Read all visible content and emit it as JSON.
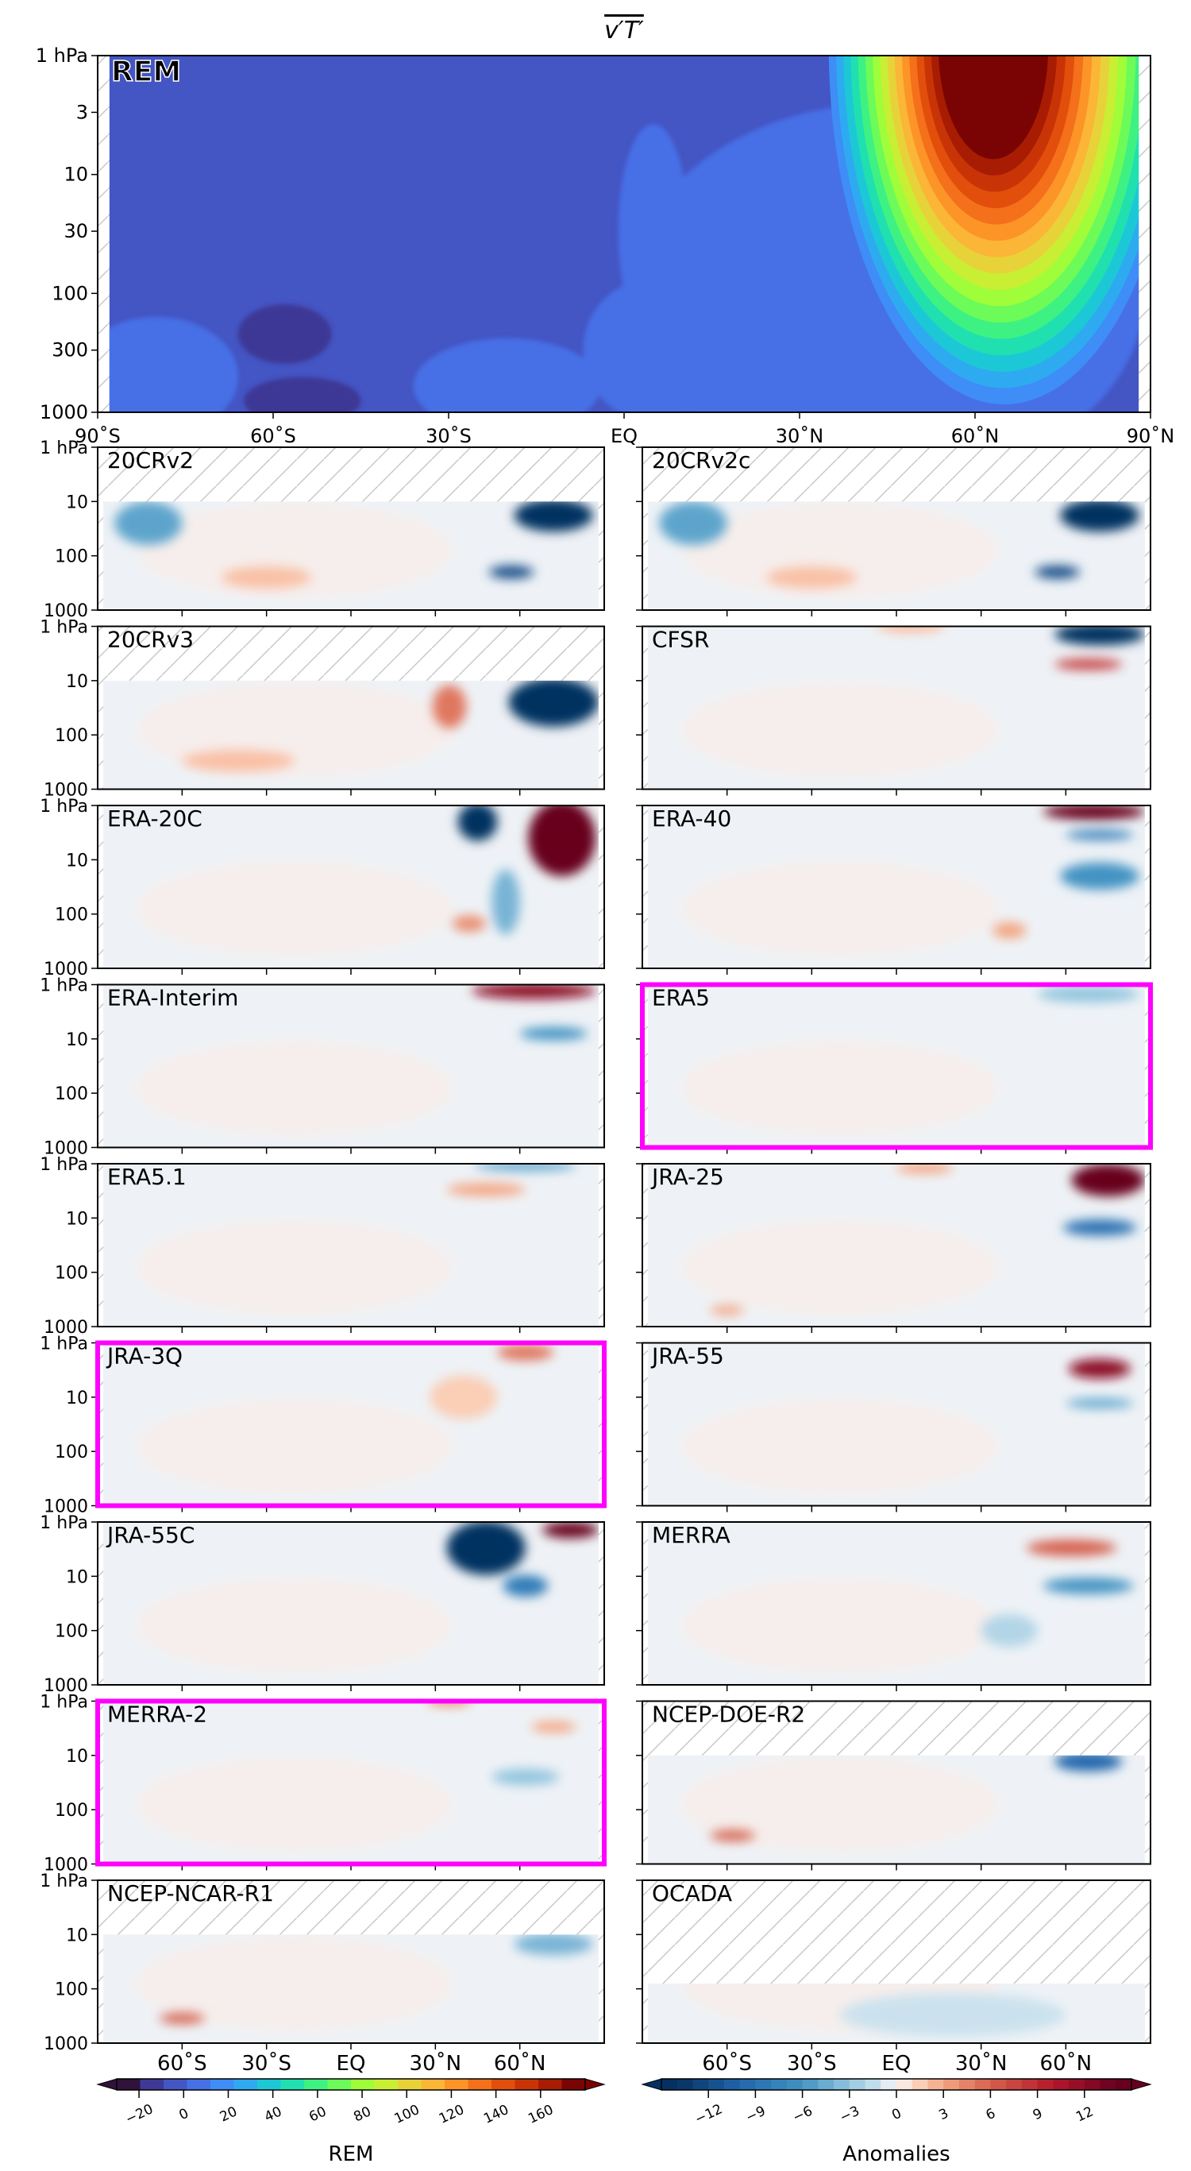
{
  "chart_data": {
    "type": "contour",
    "title": "v′T′",
    "xlim": [
      -90,
      90
    ],
    "ylim_hPa": [
      1000,
      1
    ],
    "y_scale": "log",
    "x_ticks": [
      -90,
      -60,
      -30,
      0,
      30,
      60,
      90
    ],
    "x_tick_labels": [
      "90˚S",
      "60˚S",
      "30˚S",
      "EQ",
      "30˚N",
      "60˚N",
      "90˚N"
    ],
    "small_x_tick_labels": [
      "60˚S",
      "30˚S",
      "EQ",
      "30˚N",
      "60˚N"
    ],
    "y_ticks_top": [
      1,
      3,
      10,
      30,
      100,
      300,
      1000
    ],
    "y_tick_labels_top": [
      "1 hPa",
      "3",
      "10",
      "30",
      "100",
      "300",
      "1000"
    ],
    "y_ticks_small": [
      1,
      10,
      100,
      1000
    ],
    "y_tick_labels_small": [
      "1 hPa",
      "10",
      "100",
      "1000"
    ],
    "rem_panel": {
      "name": "REM",
      "label_color": "#ff00ff",
      "background_value": -5,
      "features": [
        {
          "lat": -58,
          "p": 220,
          "value": -15,
          "lat_halfwidth": 8,
          "p_decades": 0.25
        },
        {
          "lat": -55,
          "p": 800,
          "value": -15,
          "lat_halfwidth": 10,
          "p_decades": 0.2
        },
        {
          "lat": -80,
          "p": 500,
          "value": 5,
          "lat_halfwidth": 14,
          "p_decades": 0.5
        },
        {
          "lat": -20,
          "p": 600,
          "value": 5,
          "lat_halfwidth": 16,
          "p_decades": 0.4
        },
        {
          "lat": 5,
          "p": 30,
          "value": 5,
          "lat_halfwidth": 6,
          "p_decades": 0.9
        },
        {
          "lat": 5,
          "p": 300,
          "value": 5,
          "lat_halfwidth": 12,
          "p_decades": 0.6
        },
        {
          "lat": 45,
          "p": 100,
          "value": 5,
          "lat_halfwidth": 44,
          "p_decades": 1.6
        }
      ],
      "plume": {
        "lat": 65,
        "p_top": 1,
        "levels": [
          10,
          20,
          30,
          40,
          50,
          60,
          70,
          80,
          90,
          100,
          110,
          120,
          130,
          140,
          150,
          160,
          170
        ]
      }
    },
    "anomaly_panels": [
      {
        "name": "20CRv2",
        "highlighted": false,
        "top_level_hPa": 10,
        "features": [
          {
            "lat": 72,
            "p": 18,
            "value": -14,
            "lat_halfwidth": 14,
            "p_decades": 0.3
          },
          {
            "lat": 57,
            "p": 200,
            "value": -12,
            "lat_halfwidth": 8,
            "p_decades": 0.12
          },
          {
            "lat": -72,
            "p": 25,
            "value": -5,
            "lat_halfwidth": 12,
            "p_decades": 0.4
          },
          {
            "lat": -30,
            "p": 250,
            "value": 2,
            "lat_halfwidth": 16,
            "p_decades": 0.2
          }
        ]
      },
      {
        "name": "20CRv2c",
        "highlighted": false,
        "top_level_hPa": 10,
        "features": [
          {
            "lat": 72,
            "p": 18,
            "value": -14,
            "lat_halfwidth": 14,
            "p_decades": 0.3
          },
          {
            "lat": 57,
            "p": 200,
            "value": -12,
            "lat_halfwidth": 8,
            "p_decades": 0.12
          },
          {
            "lat": -72,
            "p": 25,
            "value": -5,
            "lat_halfwidth": 12,
            "p_decades": 0.4
          },
          {
            "lat": -30,
            "p": 250,
            "value": 2,
            "lat_halfwidth": 16,
            "p_decades": 0.2
          }
        ]
      },
      {
        "name": "20CRv3",
        "highlighted": false,
        "top_level_hPa": 10,
        "features": [
          {
            "lat": 72,
            "p": 25,
            "value": -14,
            "lat_halfwidth": 16,
            "p_decades": 0.45
          },
          {
            "lat": 35,
            "p": 30,
            "value": 5,
            "lat_halfwidth": 6,
            "p_decades": 0.4
          },
          {
            "lat": -40,
            "p": 300,
            "value": 2,
            "lat_halfwidth": 20,
            "p_decades": 0.2
          }
        ]
      },
      {
        "name": "CFSR",
        "highlighted": false,
        "top_level_hPa": 1,
        "features": [
          {
            "lat": 72,
            "p": 1.4,
            "value": -14,
            "lat_halfwidth": 16,
            "p_decades": 0.2
          },
          {
            "lat": 68,
            "p": 5,
            "value": 8,
            "lat_halfwidth": 12,
            "p_decades": 0.1
          },
          {
            "lat": 5,
            "p": 1,
            "value": 2,
            "lat_halfwidth": 12,
            "p_decades": 0.12
          }
        ]
      },
      {
        "name": "ERA-20C",
        "highlighted": false,
        "top_level_hPa": 1,
        "features": [
          {
            "lat": 45,
            "p": 2,
            "value": -14,
            "lat_halfwidth": 7,
            "p_decades": 0.35
          },
          {
            "lat": 75,
            "p": 4,
            "value": 14,
            "lat_halfwidth": 12,
            "p_decades": 0.7
          },
          {
            "lat": 55,
            "p": 60,
            "value": -4,
            "lat_halfwidth": 5,
            "p_decades": 0.6
          },
          {
            "lat": 42,
            "p": 150,
            "value": 4,
            "lat_halfwidth": 6,
            "p_decades": 0.15
          }
        ]
      },
      {
        "name": "ERA-40",
        "highlighted": false,
        "top_level_hPa": 1,
        "features": [
          {
            "lat": 70,
            "p": 1.3,
            "value": 14,
            "lat_halfwidth": 18,
            "p_decades": 0.15
          },
          {
            "lat": 72,
            "p": 3.5,
            "value": -8,
            "lat_halfwidth": 12,
            "p_decades": 0.08
          },
          {
            "lat": 72,
            "p": 20,
            "value": -6,
            "lat_halfwidth": 14,
            "p_decades": 0.25
          },
          {
            "lat": 40,
            "p": 200,
            "value": 3,
            "lat_halfwidth": 6,
            "p_decades": 0.15
          }
        ]
      },
      {
        "name": "ERA-Interim",
        "highlighted": false,
        "top_level_hPa": 1,
        "features": [
          {
            "lat": 65,
            "p": 1.3,
            "value": 12,
            "lat_halfwidth": 22,
            "p_decades": 0.15
          },
          {
            "lat": 72,
            "p": 8,
            "value": -6,
            "lat_halfwidth": 12,
            "p_decades": 0.12
          }
        ]
      },
      {
        "name": "ERA5",
        "highlighted": true,
        "top_level_hPa": 1,
        "features": [
          {
            "lat": 68,
            "p": 1.5,
            "value": -3,
            "lat_halfwidth": 18,
            "p_decades": 0.15
          }
        ]
      },
      {
        "name": "ERA5.1",
        "highlighted": false,
        "top_level_hPa": 1,
        "features": [
          {
            "lat": 62,
            "p": 1.1,
            "value": -5,
            "lat_halfwidth": 18,
            "p_decades": 0.08
          },
          {
            "lat": 48,
            "p": 3,
            "value": 3,
            "lat_halfwidth": 14,
            "p_decades": 0.12
          }
        ]
      },
      {
        "name": "JRA-25",
        "highlighted": false,
        "top_level_hPa": 1,
        "features": [
          {
            "lat": 75,
            "p": 2,
            "value": 14,
            "lat_halfwidth": 13,
            "p_decades": 0.3
          },
          {
            "lat": 72,
            "p": 15,
            "value": -9,
            "lat_halfwidth": 13,
            "p_decades": 0.15
          },
          {
            "lat": 10,
            "p": 1.2,
            "value": 3,
            "lat_halfwidth": 10,
            "p_decades": 0.1
          },
          {
            "lat": -60,
            "p": 500,
            "value": 3,
            "lat_halfwidth": 6,
            "p_decades": 0.08
          }
        ]
      },
      {
        "name": "JRA-3Q",
        "highlighted": true,
        "top_level_hPa": 1,
        "features": [
          {
            "lat": 62,
            "p": 1.5,
            "value": 5,
            "lat_halfwidth": 10,
            "p_decades": 0.15
          },
          {
            "lat": 40,
            "p": 10,
            "value": 1.5,
            "lat_halfwidth": 12,
            "p_decades": 0.4
          }
        ]
      },
      {
        "name": "JRA-55",
        "highlighted": false,
        "top_level_hPa": 1,
        "features": [
          {
            "lat": 72,
            "p": 3,
            "value": 12,
            "lat_halfwidth": 11,
            "p_decades": 0.18
          },
          {
            "lat": 72,
            "p": 13,
            "value": -5,
            "lat_halfwidth": 12,
            "p_decades": 0.08
          }
        ]
      },
      {
        "name": "JRA-55C",
        "highlighted": false,
        "top_level_hPa": 1,
        "features": [
          {
            "lat": 48,
            "p": 3,
            "value": -14,
            "lat_halfwidth": 14,
            "p_decades": 0.5
          },
          {
            "lat": 78,
            "p": 1.4,
            "value": 14,
            "lat_halfwidth": 10,
            "p_decades": 0.15
          },
          {
            "lat": 62,
            "p": 15,
            "value": -8,
            "lat_halfwidth": 8,
            "p_decades": 0.2
          }
        ]
      },
      {
        "name": "MERRA",
        "highlighted": false,
        "top_level_hPa": 1,
        "features": [
          {
            "lat": 62,
            "p": 3,
            "value": 6,
            "lat_halfwidth": 16,
            "p_decades": 0.15
          },
          {
            "lat": 68,
            "p": 15,
            "value": -6,
            "lat_halfwidth": 16,
            "p_decades": 0.15
          },
          {
            "lat": 40,
            "p": 100,
            "value": -2,
            "lat_halfwidth": 10,
            "p_decades": 0.3
          }
        ]
      },
      {
        "name": "MERRA-2",
        "highlighted": true,
        "top_level_hPa": 1,
        "features": [
          {
            "lat": 35,
            "p": 1,
            "value": 4,
            "lat_halfwidth": 8,
            "p_decades": 0.08
          },
          {
            "lat": 72,
            "p": 3,
            "value": 3,
            "lat_halfwidth": 8,
            "p_decades": 0.1
          },
          {
            "lat": 62,
            "p": 25,
            "value": -3,
            "lat_halfwidth": 12,
            "p_decades": 0.15
          }
        ]
      },
      {
        "name": "NCEP-DOE-R2",
        "highlighted": false,
        "top_level_hPa": 10,
        "features": [
          {
            "lat": 68,
            "p": 13,
            "value": -10,
            "lat_halfwidth": 12,
            "p_decades": 0.18
          },
          {
            "lat": -58,
            "p": 300,
            "value": 6,
            "lat_halfwidth": 8,
            "p_decades": 0.1
          }
        ]
      },
      {
        "name": "NCEP-NCAR-R1",
        "highlighted": false,
        "top_level_hPa": 10,
        "features": [
          {
            "lat": 72,
            "p": 15,
            "value": -4,
            "lat_halfwidth": 14,
            "p_decades": 0.2
          },
          {
            "lat": -60,
            "p": 350,
            "value": 6,
            "lat_halfwidth": 8,
            "p_decades": 0.1
          }
        ]
      },
      {
        "name": "OCADA",
        "highlighted": false,
        "top_level_hPa": 80,
        "features": [
          {
            "lat": 20,
            "p": 300,
            "value": -1.2,
            "lat_halfwidth": 40,
            "p_decades": 0.4
          }
        ]
      }
    ],
    "colorbars": [
      {
        "label": "REM",
        "ticks": [
          -20,
          0,
          20,
          40,
          60,
          80,
          100,
          120,
          140,
          160
        ],
        "tick_labels": [
          "−20",
          "0",
          "20",
          "40",
          "60",
          "80",
          "100",
          "120",
          "140",
          "160"
        ],
        "range": [
          -30,
          180
        ],
        "extend": "both",
        "colors": [
          "#30123b",
          "#3e3995",
          "#4455c4",
          "#4670e6",
          "#3f8df6",
          "#2eabf0",
          "#1dc8d6",
          "#20e0b0",
          "#3ef183",
          "#6cfb58",
          "#9ffd3a",
          "#c8ef34",
          "#e8d239",
          "#fbb537",
          "#fd9428",
          "#f4701a",
          "#e24f0c",
          "#c93407",
          "#a71c03",
          "#7a0403"
        ]
      },
      {
        "label": "Anomalies",
        "ticks": [
          -12,
          -9,
          -6,
          -3,
          0,
          3,
          6,
          9,
          12
        ],
        "tick_labels": [
          "−12",
          "−9",
          "−6",
          "−3",
          "0",
          "3",
          "6",
          "9",
          "12"
        ],
        "range": [
          -15,
          15
        ],
        "extend": "both"
      }
    ],
    "highlight_color": "#ff00ff"
  }
}
